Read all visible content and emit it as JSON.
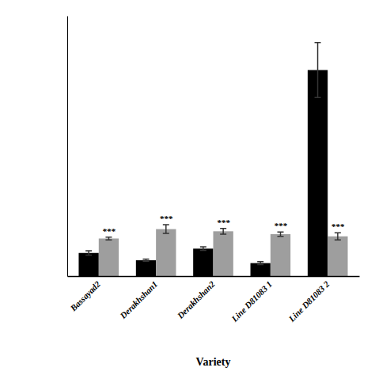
{
  "chart_data": {
    "type": "bar",
    "xlabel": "Variety",
    "categories": [
      "Bassayad2",
      "Derakhshan1",
      "Derakhshan2",
      "Line D81083 1",
      "Line D81083 2"
    ],
    "series": [
      {
        "color": "#000000",
        "values": [
          0.32,
          0.22,
          0.38,
          0.18,
          2.85
        ],
        "errors": [
          0.03,
          0.015,
          0.025,
          0.02,
          0.38
        ]
      },
      {
        "color": "#9e9e9e",
        "values": [
          0.52,
          0.65,
          0.62,
          0.58,
          0.55
        ],
        "errors": [
          0.02,
          0.06,
          0.04,
          0.03,
          0.05
        ]
      }
    ],
    "annotations": [
      "***",
      "***",
      "***",
      "***",
      "***"
    ],
    "ylim": [
      0,
      3.6
    ],
    "tick_labels": "x",
    "grid": false
  }
}
